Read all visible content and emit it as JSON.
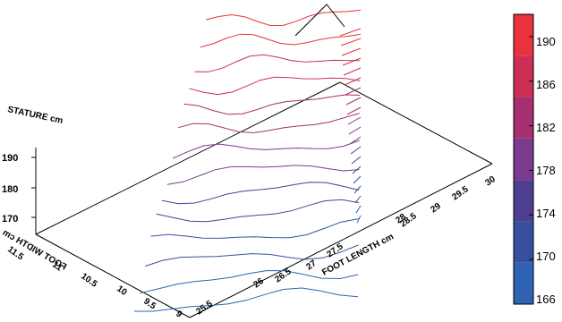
{
  "chart_data": {
    "type": "contour-3d",
    "z_label": "STATURE cm",
    "y_label": "FOOT WIDTH cm",
    "x_label": "FOOT LENGTH cm",
    "z_ticks": [
      "170",
      "180",
      "190"
    ],
    "y_ticks": [
      "9",
      "9.5",
      "10",
      "10.5",
      "11",
      "11.5"
    ],
    "x_ticks": [
      "25.5",
      "26",
      "26.5",
      "27",
      "27.5",
      "28",
      "28.5",
      "29",
      "29.5",
      "30"
    ],
    "colorbar": {
      "ticks": [
        "166",
        "170",
        "174",
        "178",
        "182",
        "186",
        "190"
      ],
      "range": [
        166,
        192
      ],
      "colors": [
        "#2e63b4",
        "#36509e",
        "#4e3e92",
        "#7a3a8e",
        "#a6306f",
        "#cc2f55",
        "#e8323d"
      ]
    },
    "surface_levels": [
      166,
      168,
      170,
      172,
      174,
      176,
      178,
      180,
      182,
      184,
      186,
      188,
      190,
      192
    ]
  }
}
